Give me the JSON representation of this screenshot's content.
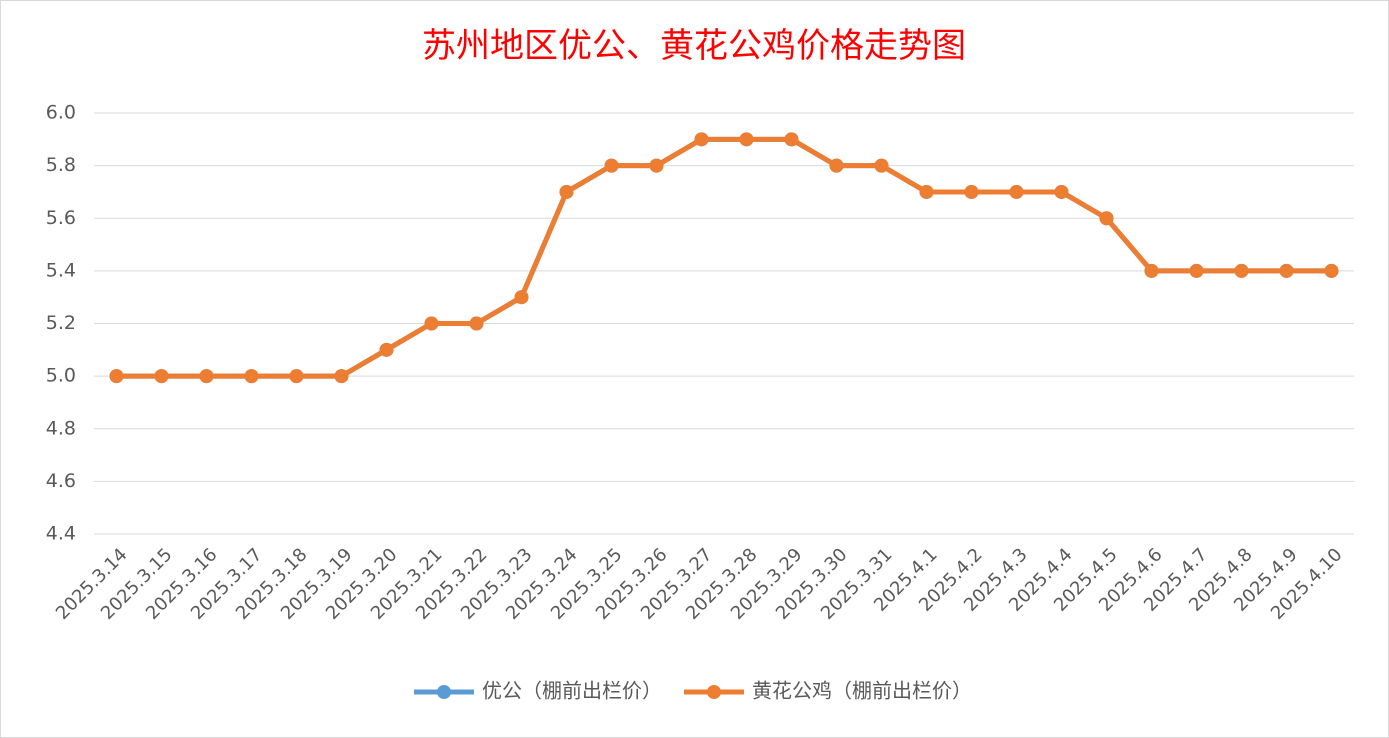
{
  "chart_data": {
    "type": "line",
    "title": "苏州地区优公、黄花公鸡价格走势图",
    "categories": [
      "2025.3.14",
      "2025.3.15",
      "2025.3.16",
      "2025.3.17",
      "2025.3.18",
      "2025.3.19",
      "2025.3.20",
      "2025.3.21",
      "2025.3.22",
      "2025.3.23",
      "2025.3.24",
      "2025.3.25",
      "2025.3.26",
      "2025.3.27",
      "2025.3.28",
      "2025.3.29",
      "2025.3.30",
      "2025.3.31",
      "2025.4.1",
      "2025.4.2",
      "2025.4.3",
      "2025.4.4",
      "2025.4.5",
      "2025.4.6",
      "2025.4.7",
      "2025.4.8",
      "2025.4.9",
      "2025.4.10"
    ],
    "series": [
      {
        "name": "优公（棚前出栏价）",
        "color": "#5b9bd5",
        "values": [
          5.0,
          5.0,
          5.0,
          5.0,
          5.0,
          5.0,
          5.1,
          5.2,
          5.2,
          5.3,
          5.7,
          5.8,
          5.8,
          5.9,
          5.9,
          5.9,
          5.8,
          5.8,
          5.7,
          5.7,
          5.7,
          5.7,
          5.6,
          5.4,
          5.4,
          5.4,
          5.4,
          5.4
        ]
      },
      {
        "name": "黄花公鸡（棚前出栏价）",
        "color": "#ed7d31",
        "values": [
          5.0,
          5.0,
          5.0,
          5.0,
          5.0,
          5.0,
          5.1,
          5.2,
          5.2,
          5.3,
          5.7,
          5.8,
          5.8,
          5.9,
          5.9,
          5.9,
          5.8,
          5.8,
          5.7,
          5.7,
          5.7,
          5.7,
          5.6,
          5.4,
          5.4,
          5.4,
          5.4,
          5.4
        ]
      }
    ],
    "ylim": [
      4.4,
      6.0
    ],
    "yticks": [
      4.4,
      4.6,
      4.8,
      {
        "value": 5.0,
        "label": "5.0"
      },
      5.2,
      5.4,
      5.6,
      5.8,
      {
        "value": 6.0,
        "label": "6.0"
      }
    ],
    "grid": true,
    "legend": "bottom"
  }
}
